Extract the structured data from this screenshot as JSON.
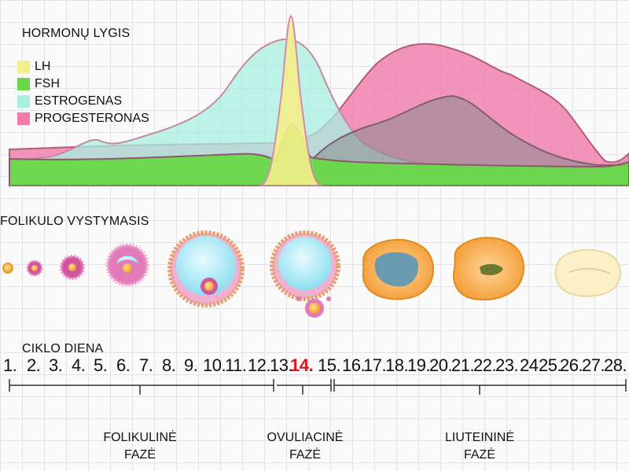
{
  "hormone_section": {
    "title": "HORMONŲ LYGIS",
    "legend": [
      {
        "label": "LH",
        "color": "#f3ee8a"
      },
      {
        "label": "FSH",
        "color": "#6ad84a"
      },
      {
        "label": "ESTROGENAS",
        "color": "#a8f0e0"
      },
      {
        "label": "PROGESTERONAS",
        "color": "#f07aaa"
      }
    ]
  },
  "follicle_section": {
    "title": "FOLIKULO VYSTYMASIS",
    "stages": [
      "primordial-follicle",
      "primary-follicle",
      "secondary-follicle",
      "early-antral-follicle",
      "graafian-follicle",
      "ovulation",
      "corpus-luteum-early",
      "corpus-luteum",
      "corpus-albicans"
    ]
  },
  "cycle_section": {
    "title": "CIKLO DIENA",
    "days": [
      "1.",
      "2.",
      "3.",
      "4.",
      "5.",
      "6.",
      "7.",
      "8.",
      "9.",
      "10.",
      "11.",
      "12.",
      "13.",
      "14.",
      "15.",
      "16.",
      "17.",
      "18.",
      "19.",
      "20.",
      "21.",
      "22.",
      "23.",
      "24",
      "25.",
      "26.",
      "27.",
      "28."
    ],
    "highlight_day": "14."
  },
  "phases": [
    {
      "line1": "FOLIKULINĖ",
      "line2": "FAZĖ"
    },
    {
      "line1": "OVULIACINĖ",
      "line2": "FAZĖ"
    },
    {
      "line1": "LIUTEININĖ",
      "line2": "FAZĖ"
    }
  ]
}
